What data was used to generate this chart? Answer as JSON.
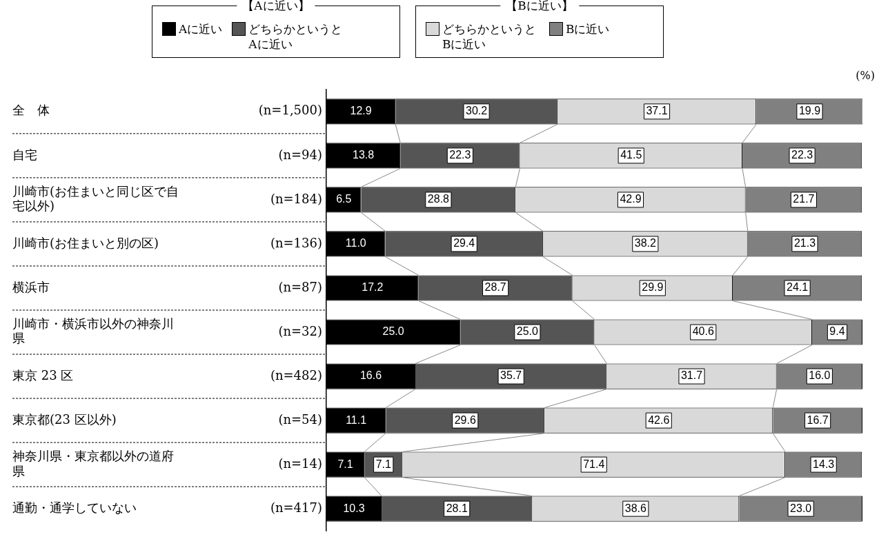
{
  "chart_data": {
    "type": "bar",
    "orientation": "horizontal",
    "stacked": true,
    "grid": false,
    "legend": "top",
    "tick_labels": "y",
    "xlim": [
      0,
      100
    ],
    "categories": [
      "全　体",
      "自宅",
      "川崎市(お住まいと同じ区で自宅以外)",
      "川崎市(お住まいと別の区)",
      "横浜市",
      "川崎市・横浜市以外の神奈川県",
      "東京 23 区",
      "東京都(23 区以外)",
      "神奈川県・東京都以外の道府県",
      "通勤・通学していない"
    ],
    "series": [
      {
        "name": "Aに近い",
        "color": "#000000",
        "values": [
          12.9,
          13.8,
          6.5,
          11.0,
          17.2,
          25.0,
          16.6,
          11.1,
          7.1,
          10.3
        ],
        "value_labels": [
          "12.9",
          "13.8",
          "6.5",
          "11.0",
          "17.2",
          "25.0",
          "16.6",
          "11.1",
          "7.1",
          "10.3"
        ]
      },
      {
        "name": "どちらかというとAに近い",
        "color": "#555555",
        "values": [
          30.2,
          22.3,
          28.8,
          29.4,
          28.7,
          25.0,
          35.7,
          29.6,
          7.1,
          28.1
        ],
        "value_labels": [
          "30.2",
          "22.3",
          "28.8",
          "29.4",
          "28.7",
          "25.0",
          "35.7",
          "29.6",
          "7.1",
          "28.1"
        ]
      },
      {
        "name": "どちらかというとBに近い",
        "color": "#d9d9d9",
        "values": [
          37.1,
          41.5,
          42.9,
          38.2,
          29.9,
          40.6,
          31.7,
          42.6,
          71.4,
          38.6
        ],
        "value_labels": [
          "37.1",
          "41.5",
          "42.9",
          "38.2",
          "29.9",
          "40.6",
          "31.7",
          "42.6",
          "71.4",
          "38.6"
        ]
      },
      {
        "name": "Bに近い",
        "color": "#808080",
        "values": [
          19.9,
          22.3,
          21.7,
          21.3,
          24.1,
          9.4,
          16.0,
          16.7,
          14.3,
          23.0
        ],
        "value_labels": [
          "19.9",
          "22.3",
          "21.7",
          "21.3",
          "24.1",
          "9.4",
          "16.0",
          "16.7",
          "14.3",
          "23.0"
        ]
      }
    ],
    "annotations": [
      "【Aに近い】",
      "【Bに近い】",
      "(%)",
      "(n=1,500)",
      "(n=94)",
      "(n=184)",
      "(n=136)",
      "(n=87)",
      "(n=32)",
      "(n=482)",
      "(n=54)",
      "(n=14)",
      "(n=417)"
    ]
  }
}
